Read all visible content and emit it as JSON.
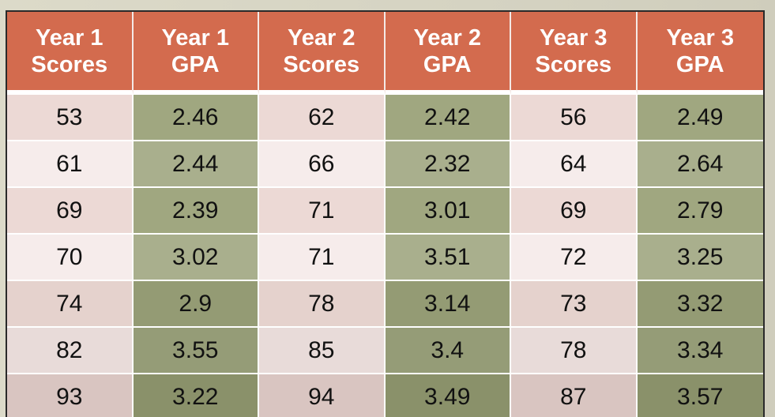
{
  "table": {
    "headers": [
      {
        "line1": "Year 1",
        "line2": "Scores"
      },
      {
        "line1": "Year 1",
        "line2": "GPA"
      },
      {
        "line1": "Year 2",
        "line2": "Scores"
      },
      {
        "line1": "Year 2",
        "line2": "GPA"
      },
      {
        "line1": "Year 3",
        "line2": "Scores"
      },
      {
        "line1": "Year 3",
        "line2": "GPA"
      }
    ],
    "rows": [
      [
        "53",
        "2.46",
        "62",
        "2.42",
        "56",
        "2.49"
      ],
      [
        "61",
        "2.44",
        "66",
        "2.32",
        "64",
        "2.64"
      ],
      [
        "69",
        "2.39",
        "71",
        "3.01",
        "69",
        "2.79"
      ],
      [
        "70",
        "3.02",
        "71",
        "3.51",
        "72",
        "3.25"
      ],
      [
        "74",
        "2.9",
        "78",
        "3.14",
        "73",
        "3.32"
      ],
      [
        "82",
        "3.55",
        "85",
        "3.4",
        "78",
        "3.34"
      ],
      [
        "93",
        "3.22",
        "94",
        "3.49",
        "87",
        "3.57"
      ]
    ]
  },
  "colors": {
    "header_bg": "#d36b4e",
    "score_cell_bg": "#ecd9d5",
    "gpa_cell_bg": "#a0a780",
    "page_bg": "#d9d7c6"
  }
}
